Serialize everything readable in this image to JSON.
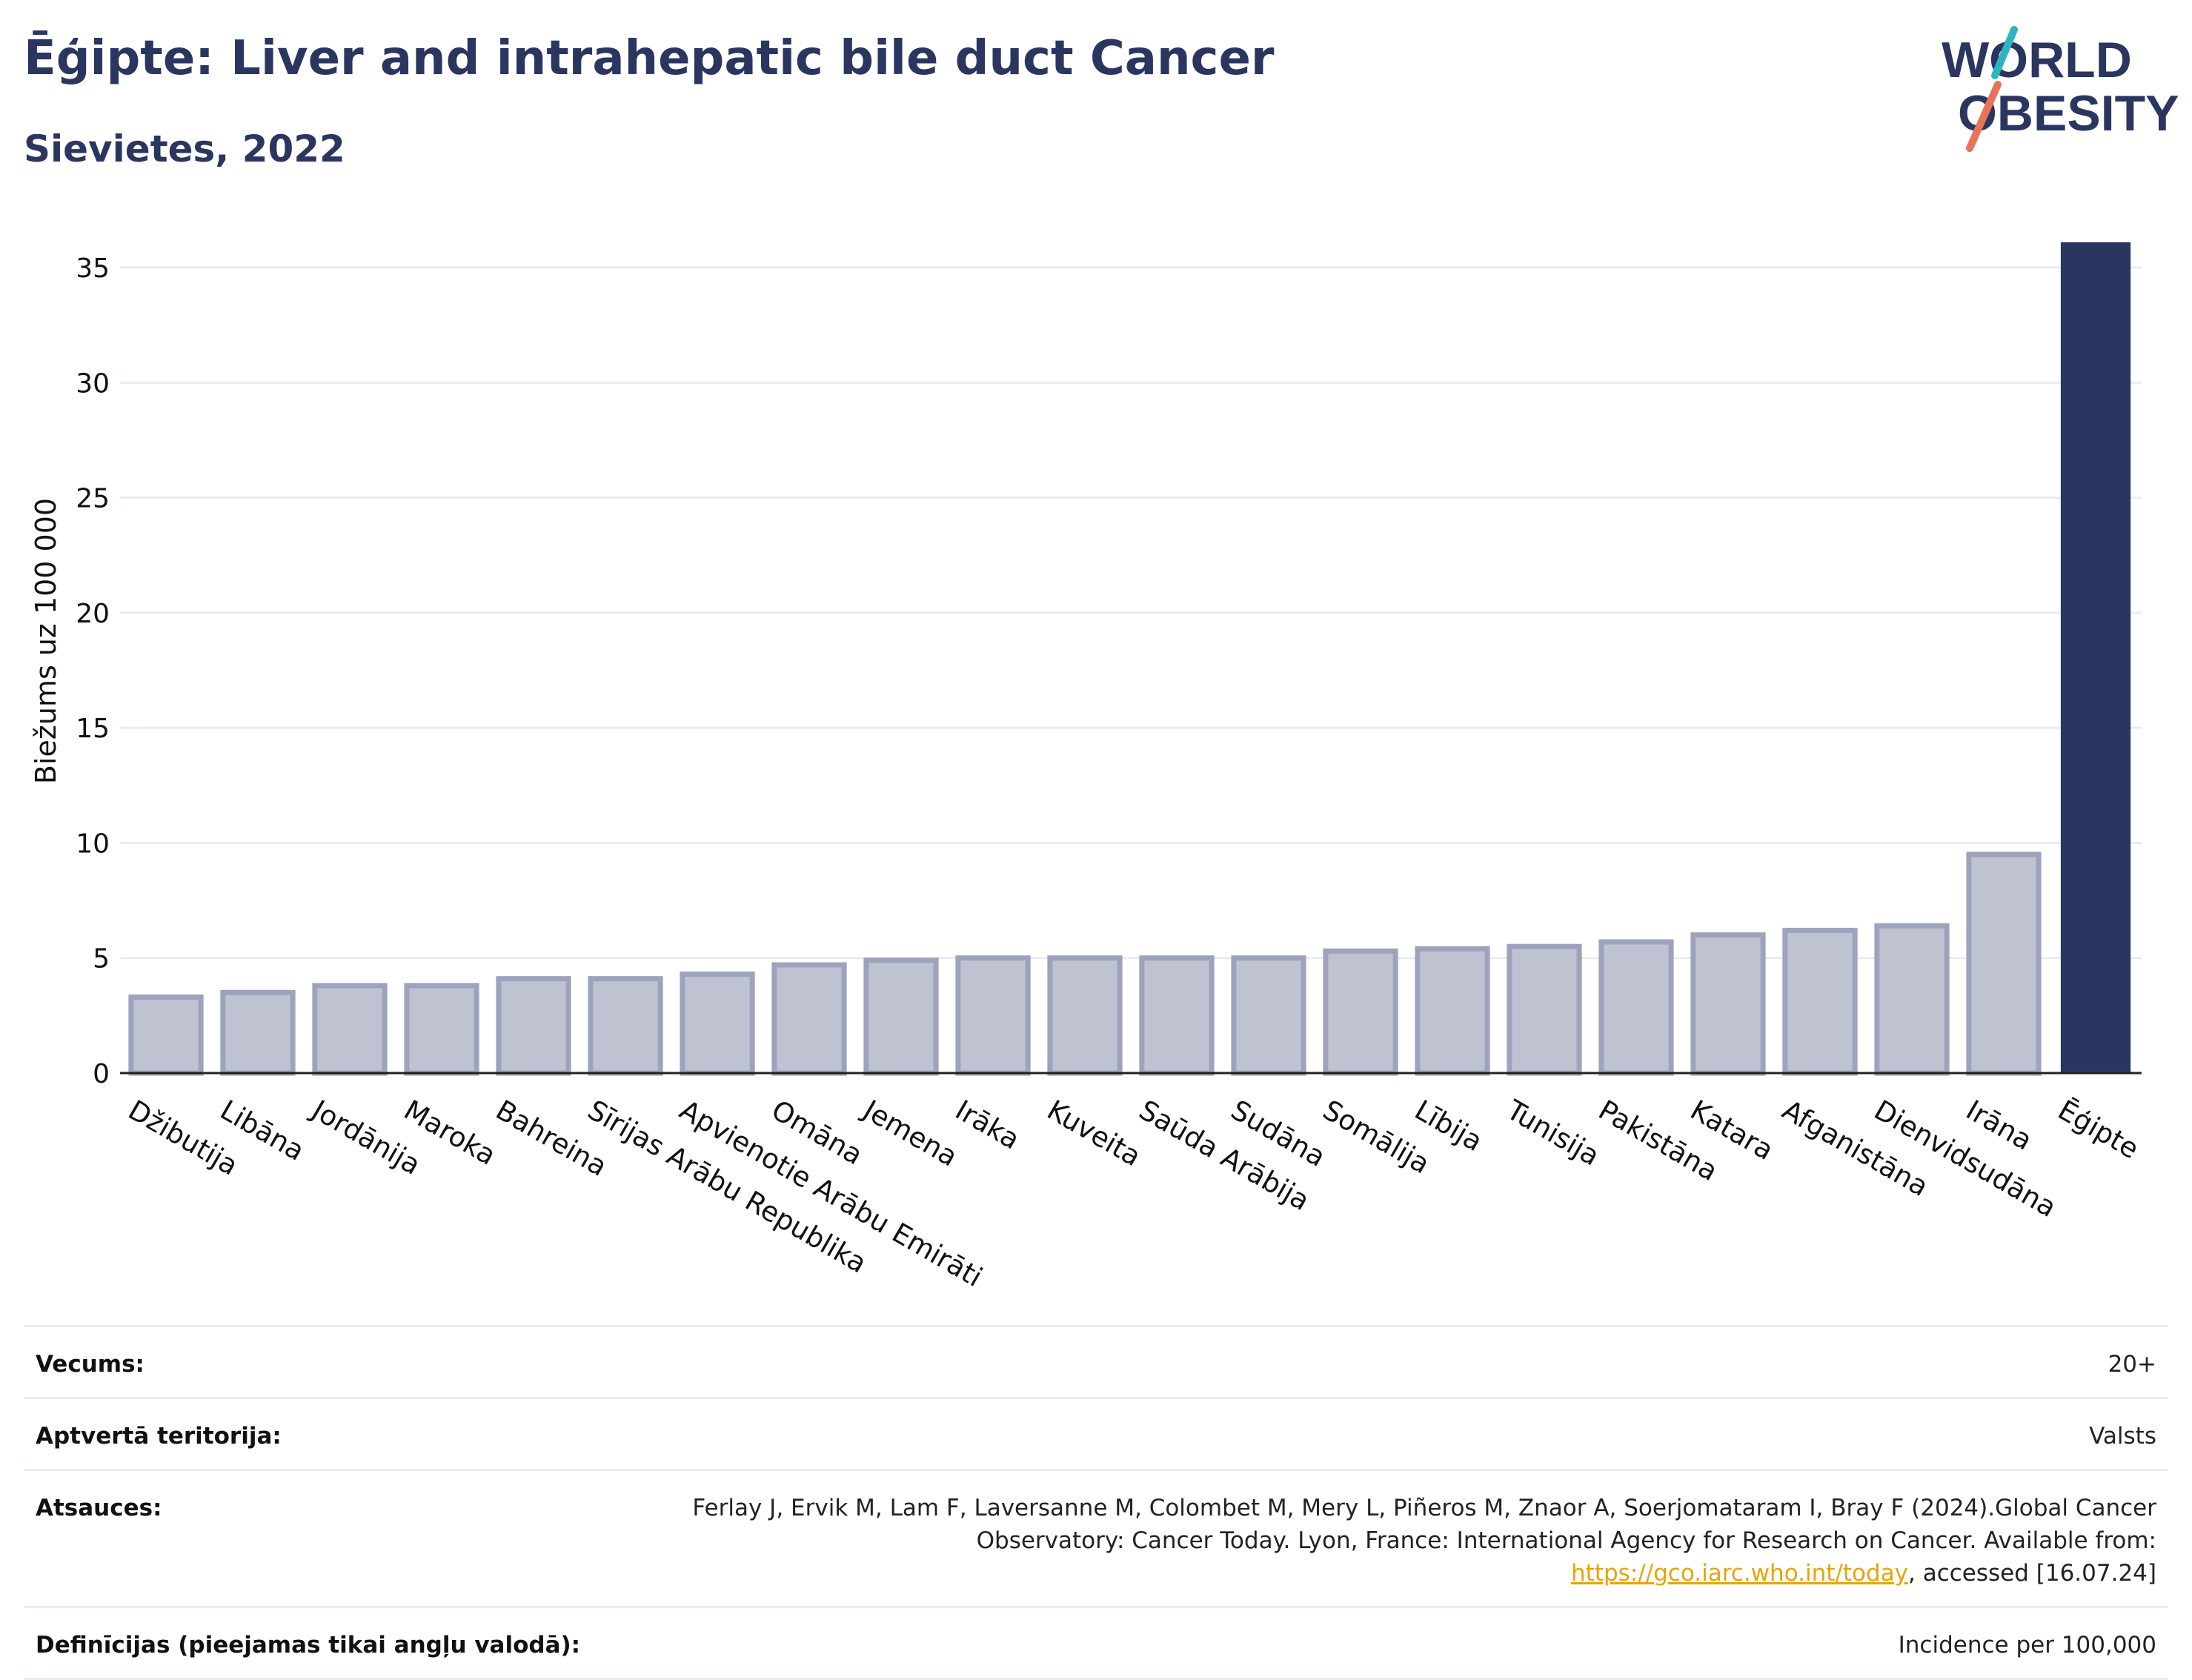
{
  "header": {
    "title": "Ēģipte: Liver and intrahepatic bile duct Cancer",
    "subtitle": "Sievietes, 2022"
  },
  "logo": {
    "line1": "WORLD",
    "line2": "OBESITY",
    "accent_colors": [
      "#2bb6c0",
      "#e8735a"
    ]
  },
  "colors": {
    "highlight": "#2a3660",
    "bar_fill": "#bec2d1",
    "bar_stroke": "#9da3bd",
    "grid": "#e7edf3",
    "link": "#e5a50a"
  },
  "chart_data": {
    "type": "bar",
    "ylabel": "Biežums uz 100 000",
    "ylim": [
      0,
      36
    ],
    "yticks": [
      0,
      5,
      10,
      15,
      20,
      25,
      30,
      35
    ],
    "grid": true,
    "highlight_category": "Ēģipte",
    "categories": [
      "Džibutija",
      "Libāna",
      "Jordānija",
      "Maroka",
      "Bahreina",
      "Sīrijas Arābu Republika",
      "Apvienotie Arābu Emirāti",
      "Omāna",
      "Jemena",
      "Irāka",
      "Kuveita",
      "Saūda Arābija",
      "Sudāna",
      "Somālija",
      "Lībija",
      "Tunisija",
      "Pakistāna",
      "Katara",
      "Afganistāna",
      "Dienvidsudāna",
      "Irāna",
      "Ēģipte"
    ],
    "values": [
      3.3,
      3.5,
      3.8,
      3.8,
      4.1,
      4.1,
      4.3,
      4.7,
      4.9,
      5.0,
      5.0,
      5.0,
      5.0,
      5.3,
      5.4,
      5.5,
      5.7,
      6.0,
      6.2,
      6.4,
      9.5,
      36.1
    ]
  },
  "meta": {
    "age_label": "Vecums:",
    "age_value": "20+",
    "coverage_label": "Aptvertā teritorija:",
    "coverage_value": "Valsts",
    "refs_label": "Atsauces:",
    "refs_text": "Ferlay J, Ervik M, Lam F, Laversanne M, Colombet M, Mery L, Piñeros M, Znaor A, Soerjomataram I, Bray F (2024).Global Cancer Observatory: Cancer Today. Lyon, France: International Agency for Research on Cancer. Available from: ",
    "refs_link": "https://gco.iarc.who.int/today",
    "refs_suffix": ", accessed [16.07.24]",
    "defs_label": "Definīcijas (pieejamas tikai angļu valodā):",
    "defs_value": "Incidence per 100,000"
  }
}
